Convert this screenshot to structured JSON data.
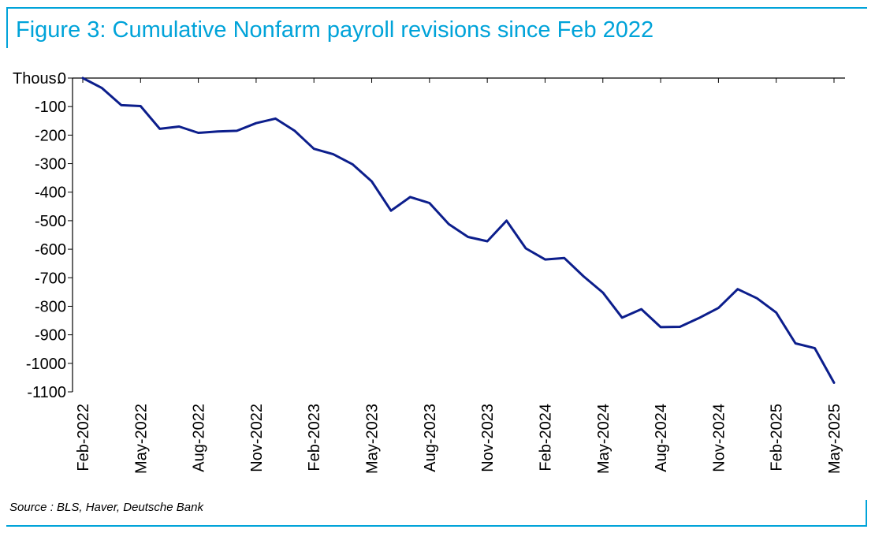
{
  "header": {
    "title": "Figure 3: Cumulative Nonfarm payroll revisions since Feb 2022"
  },
  "footer": {
    "source": "Source : BLS, Haver, Deutsche Bank"
  },
  "colors": {
    "frame": "#00a3d9",
    "title": "#00a3d9",
    "line": "#0c1e8c",
    "axis": "#000000"
  },
  "chart_data": {
    "type": "line",
    "title": "",
    "xlabel": "",
    "ylabel": "Thous.",
    "ylim": [
      -1100,
      0
    ],
    "yticks": [
      0,
      -100,
      -200,
      -300,
      -400,
      -500,
      -600,
      -700,
      -800,
      -900,
      -1000,
      -1100
    ],
    "ytick_labels": [
      "0",
      "-100",
      "-200",
      "-300",
      "-400",
      "-500",
      "-600",
      "-700",
      "-800",
      "-900",
      "-1000",
      "-1100"
    ],
    "grid": false,
    "legend": "none",
    "x_labels": [
      "Feb-2022",
      "May-2022",
      "Aug-2022",
      "Nov-2022",
      "Feb-2023",
      "May-2023",
      "Aug-2023",
      "Nov-2023",
      "Feb-2024",
      "May-2024",
      "Aug-2024",
      "Nov-2024",
      "Feb-2025",
      "May-2025"
    ],
    "x": [
      "Feb-2022",
      "Mar-2022",
      "Apr-2022",
      "May-2022",
      "Jun-2022",
      "Jul-2022",
      "Aug-2022",
      "Sep-2022",
      "Oct-2022",
      "Nov-2022",
      "Dec-2022",
      "Jan-2023",
      "Feb-2023",
      "Mar-2023",
      "Apr-2023",
      "May-2023",
      "Jun-2023",
      "Jul-2023",
      "Aug-2023",
      "Sep-2023",
      "Oct-2023",
      "Nov-2023",
      "Dec-2023",
      "Jan-2024",
      "Feb-2024",
      "Mar-2024",
      "Apr-2024",
      "May-2024",
      "Jun-2024",
      "Jul-2024",
      "Aug-2024",
      "Sep-2024",
      "Oct-2024",
      "Nov-2024",
      "Dec-2024",
      "Jan-2025",
      "Feb-2025",
      "Mar-2025",
      "Apr-2025",
      "May-2025"
    ],
    "series": [
      {
        "values": [
          0,
          -35,
          -95,
          -98,
          -178,
          -170,
          -192,
          -187,
          -185,
          -158,
          -142,
          -185,
          -248,
          -267,
          -302,
          -362,
          -465,
          -417,
          -438,
          -512,
          -557,
          -572,
          -500,
          -597,
          -636,
          -631,
          -695,
          -752,
          -840,
          -810,
          -873,
          -872,
          -841,
          -806,
          -740,
          -772,
          -822,
          -930,
          -947,
          -1068
        ]
      }
    ]
  }
}
